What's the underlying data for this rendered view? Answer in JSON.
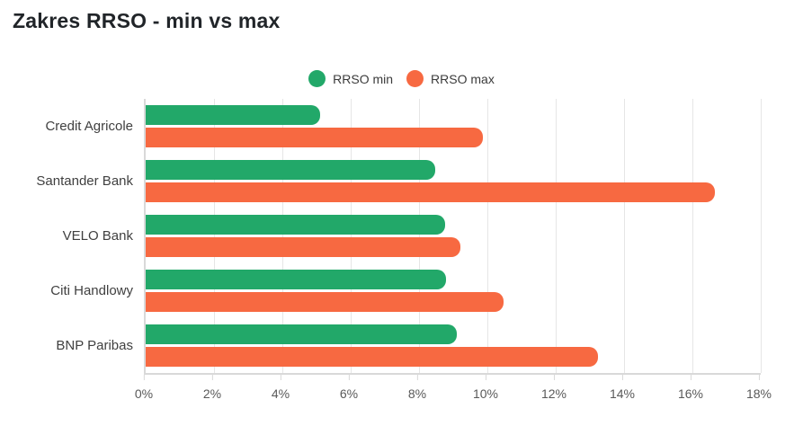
{
  "title": "Zakres RRSO - min vs max",
  "chart_data": {
    "type": "bar",
    "orientation": "horizontal",
    "title": "Zakres RRSO - min vs max",
    "categories": [
      "Credit Agricole",
      "Santander Bank",
      "VELO Bank",
      "Citi Handlowy",
      "BNP Paribas"
    ],
    "series": [
      {
        "name": "RRSO min",
        "color": "#22a869",
        "values": [
          5.1,
          8.47,
          8.77,
          8.8,
          9.1
        ]
      },
      {
        "name": "RRSO max",
        "color": "#f76941",
        "values": [
          9.87,
          16.66,
          9.2,
          10.47,
          13.23
        ]
      }
    ],
    "xlabel": "",
    "ylabel": "",
    "xlim": [
      0,
      18
    ],
    "tick_step": 2,
    "x_tick_labels": [
      "0%",
      "2%",
      "4%",
      "6%",
      "8%",
      "10%",
      "12%",
      "14%",
      "16%",
      "18%"
    ],
    "grid": true,
    "legend_position": "top",
    "colors": {
      "grid": "#e6e6e6",
      "axis": "#d9d9d9",
      "tick_label": "#595959",
      "category_label": "#404040",
      "title": "#212529"
    }
  }
}
